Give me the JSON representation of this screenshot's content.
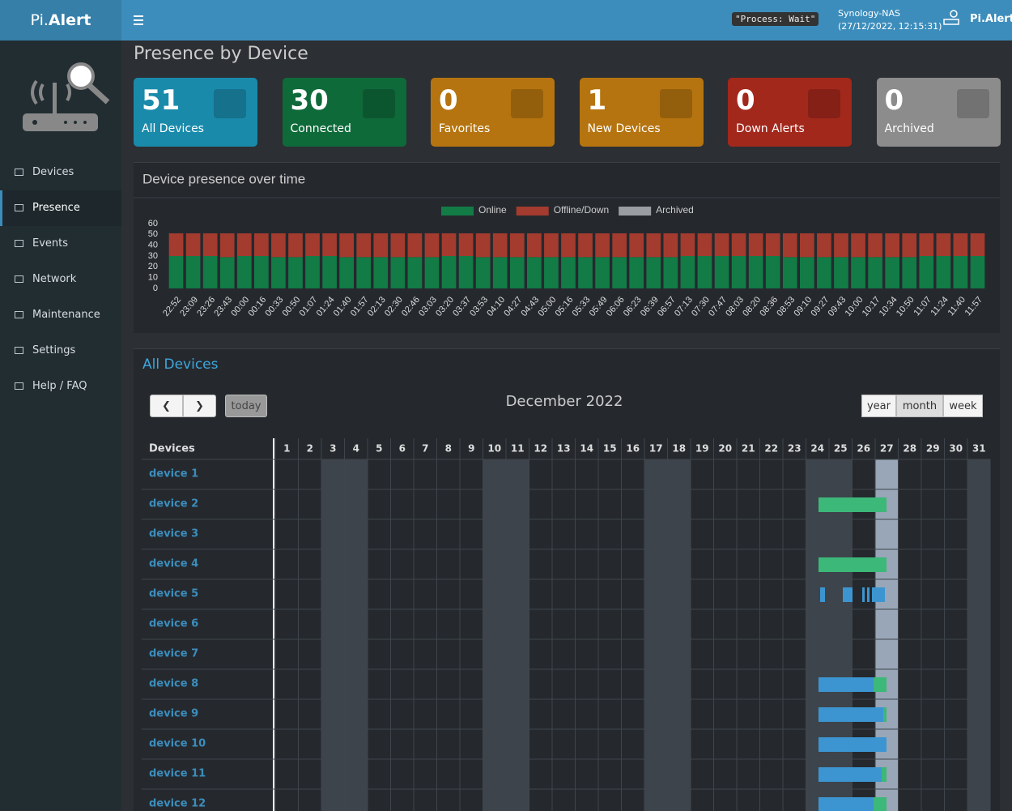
{
  "header": {
    "brand_light": "Pi.",
    "brand_bold": "Alert",
    "status": "\"Process: Wait\"",
    "host": "Synology-NAS",
    "datetime": "(27/12/2022, 12:15:31)",
    "user": "Pi.Alert"
  },
  "sidebar": {
    "items": [
      "Devices",
      "Presence",
      "Events",
      "Network",
      "Maintenance",
      "Settings",
      "Help / FAQ"
    ]
  },
  "page_title": "Presence by Device",
  "cards": [
    {
      "value": 51,
      "label": "All Devices"
    },
    {
      "value": 30,
      "label": "Connected"
    },
    {
      "value": 0,
      "label": "Favorites"
    },
    {
      "value": 1,
      "label": "New Devices"
    },
    {
      "value": 0,
      "label": "Down Alerts"
    },
    {
      "value": 0,
      "label": "Archived"
    }
  ],
  "chart_data": {
    "type": "bar",
    "stacked": true,
    "title": "Device presence over time",
    "categories": [
      "22:52",
      "23:09",
      "23:26",
      "23:43",
      "00:00",
      "00:16",
      "00:33",
      "00:50",
      "01:07",
      "01:24",
      "01:40",
      "01:57",
      "02:13",
      "02:30",
      "02:46",
      "03:03",
      "03:20",
      "03:37",
      "03:53",
      "04:10",
      "04:27",
      "04:43",
      "05:00",
      "05:16",
      "05:33",
      "05:49",
      "06:06",
      "06:23",
      "06:39",
      "06:57",
      "07:13",
      "07:30",
      "07:47",
      "08:03",
      "08:20",
      "08:36",
      "08:53",
      "09:10",
      "09:27",
      "09:43",
      "10:00",
      "10:17",
      "10:34",
      "10:50",
      "11:07",
      "11:24",
      "11:40",
      "11:57"
    ],
    "series": [
      {
        "name": "Online",
        "color": "#127b46",
        "values": [
          30,
          30,
          30,
          29,
          30,
          30,
          29,
          29,
          30,
          30,
          29,
          29,
          29,
          29,
          29,
          29,
          30,
          30,
          29,
          29,
          29,
          29,
          29,
          29,
          29,
          29,
          29,
          29,
          29,
          29,
          30,
          30,
          30,
          30,
          30,
          30,
          29,
          29,
          29,
          29,
          29,
          29,
          29,
          29,
          30,
          30,
          30,
          30
        ]
      },
      {
        "name": "Offline/Down",
        "color": "#a33b2e",
        "values": [
          21,
          21,
          21,
          22,
          21,
          21,
          22,
          22,
          21,
          21,
          22,
          22,
          22,
          22,
          22,
          22,
          21,
          21,
          22,
          22,
          22,
          22,
          22,
          22,
          22,
          22,
          22,
          22,
          22,
          22,
          21,
          21,
          21,
          21,
          21,
          21,
          22,
          22,
          22,
          22,
          22,
          22,
          22,
          22,
          21,
          21,
          21,
          21
        ]
      },
      {
        "name": "Archived",
        "color": "#9a9ea3",
        "values": [
          0,
          0,
          0,
          0,
          0,
          0,
          0,
          0,
          0,
          0,
          0,
          0,
          0,
          0,
          0,
          0,
          0,
          0,
          0,
          0,
          0,
          0,
          0,
          0,
          0,
          0,
          0,
          0,
          0,
          0,
          0,
          0,
          0,
          0,
          0,
          0,
          0,
          0,
          0,
          0,
          0,
          0,
          0,
          0,
          0,
          0,
          0,
          0
        ]
      }
    ],
    "ylim": [
      0,
      60
    ],
    "yticks": [
      0,
      10,
      20,
      30,
      40,
      50,
      60
    ],
    "grid": false,
    "legend": "top"
  },
  "calendar": {
    "title": "All Devices",
    "today": "today",
    "views": [
      "year",
      "month",
      "week"
    ],
    "month": "December 2022",
    "column_header": "Devices",
    "days": [
      1,
      2,
      3,
      4,
      5,
      6,
      7,
      8,
      9,
      10,
      11,
      12,
      13,
      14,
      15,
      16,
      17,
      18,
      19,
      20,
      21,
      22,
      23,
      24,
      25,
      26,
      27,
      28,
      29,
      30,
      31
    ],
    "devices": [
      "device 1",
      "device 2",
      "device 3",
      "device 4",
      "device 5",
      "device 6",
      "device 7",
      "device 8",
      "device 9",
      "device 10",
      "device 11",
      "device 12"
    ]
  }
}
